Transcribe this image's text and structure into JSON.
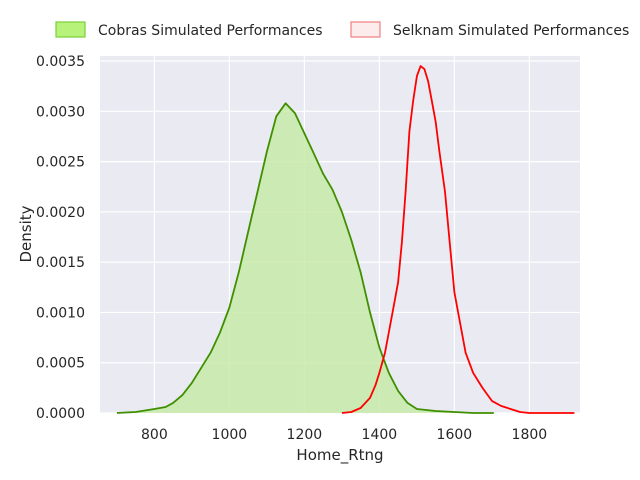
{
  "chart_data": {
    "type": "area",
    "xlabel": "Home_Rtng",
    "ylabel": "Density",
    "xlim": [
      655,
      1935
    ],
    "ylim": [
      0,
      0.00355
    ],
    "x_ticks": [
      800,
      1000,
      1200,
      1400,
      1600,
      1800
    ],
    "x_tick_labels": [
      "800",
      "1000",
      "1200",
      "1400",
      "1600",
      "1800"
    ],
    "y_ticks": [
      0,
      0.0005,
      0.001,
      0.0015,
      0.002,
      0.0025,
      0.003,
      0.0035
    ],
    "y_tick_labels": [
      "0.0000",
      "0.0005",
      "0.0010",
      "0.0015",
      "0.0020",
      "0.0025",
      "0.0030",
      "0.0035"
    ],
    "grid": true,
    "legend_position": "top",
    "series": [
      {
        "name": "Cobras Simulated Performances",
        "kind": "filled",
        "line_color": "#3f8f00",
        "fill_color": "#c7eaa8",
        "legend_fill": "#b7f27a",
        "legend_edge": "#7ccf3a",
        "points": [
          [
            700,
            0.0
          ],
          [
            750,
            1e-05
          ],
          [
            800,
            4e-05
          ],
          [
            830,
            6e-05
          ],
          [
            850,
            0.0001
          ],
          [
            875,
            0.00018
          ],
          [
            900,
            0.0003
          ],
          [
            925,
            0.00045
          ],
          [
            950,
            0.0006
          ],
          [
            975,
            0.0008
          ],
          [
            1000,
            0.00105
          ],
          [
            1025,
            0.0014
          ],
          [
            1050,
            0.0018
          ],
          [
            1075,
            0.0022
          ],
          [
            1100,
            0.0026
          ],
          [
            1125,
            0.00295
          ],
          [
            1150,
            0.00308
          ],
          [
            1175,
            0.00298
          ],
          [
            1200,
            0.00278
          ],
          [
            1225,
            0.00258
          ],
          [
            1250,
            0.00238
          ],
          [
            1275,
            0.00222
          ],
          [
            1300,
            0.002
          ],
          [
            1325,
            0.00172
          ],
          [
            1350,
            0.0014
          ],
          [
            1375,
            0.001
          ],
          [
            1400,
            0.00065
          ],
          [
            1425,
            0.0004
          ],
          [
            1450,
            0.00022
          ],
          [
            1475,
            0.0001
          ],
          [
            1500,
            4e-05
          ],
          [
            1550,
            2e-05
          ],
          [
            1600,
            1e-05
          ],
          [
            1650,
            0.0
          ],
          [
            1705,
            0.0
          ]
        ]
      },
      {
        "name": "Selknam Simulated Performances",
        "kind": "line",
        "line_color": "#ff0000",
        "legend_fill": "#fdecec",
        "legend_edge": "#f08080",
        "points": [
          [
            1300,
            0.0
          ],
          [
            1325,
            1e-05
          ],
          [
            1350,
            5e-05
          ],
          [
            1375,
            0.00015
          ],
          [
            1390,
            0.00028
          ],
          [
            1400,
            0.0004
          ],
          [
            1415,
            0.0006
          ],
          [
            1425,
            0.0008
          ],
          [
            1440,
            0.0011
          ],
          [
            1450,
            0.0013
          ],
          [
            1460,
            0.0017
          ],
          [
            1470,
            0.0022
          ],
          [
            1480,
            0.0028
          ],
          [
            1490,
            0.0031
          ],
          [
            1500,
            0.00335
          ],
          [
            1510,
            0.00345
          ],
          [
            1520,
            0.00342
          ],
          [
            1530,
            0.0033
          ],
          [
            1540,
            0.0031
          ],
          [
            1550,
            0.0029
          ],
          [
            1560,
            0.0026
          ],
          [
            1575,
            0.0022
          ],
          [
            1590,
            0.0016
          ],
          [
            1600,
            0.0012
          ],
          [
            1615,
            0.0009
          ],
          [
            1630,
            0.0006
          ],
          [
            1650,
            0.0004
          ],
          [
            1675,
            0.00025
          ],
          [
            1700,
            0.00012
          ],
          [
            1725,
            7e-05
          ],
          [
            1750,
            4e-05
          ],
          [
            1775,
            1e-05
          ],
          [
            1800,
            0.0
          ],
          [
            1850,
            0.0
          ],
          [
            1920,
            0.0
          ]
        ]
      }
    ]
  }
}
